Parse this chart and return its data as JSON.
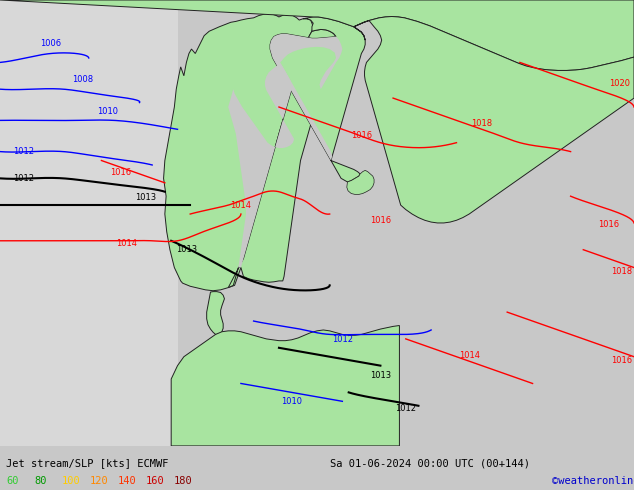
{
  "title_left": "Jet stream/SLP [kts] ECMWF",
  "title_right": "Sa 01-06-2024 00:00 UTC (00+144)",
  "credit": "©weatheronline.co.uk",
  "legend_values": [
    "60",
    "80",
    "100",
    "120",
    "140",
    "160",
    "180"
  ],
  "legend_colors": [
    "#00cc00",
    "#009900",
    "#ffaa00",
    "#ff6600",
    "#ff3300",
    "#cc0000",
    "#990000"
  ],
  "bg_color_sea": "#c8c8c8",
  "bg_color_left": "#dcdcdc",
  "land_color": "#a8e4a0",
  "water_color": "#b8b8c8",
  "border_color": "#222222",
  "bottom_bar_color": "#e8e8e8",
  "credit_color": "#0000cc",
  "fig_width": 6.34,
  "fig_height": 4.9
}
